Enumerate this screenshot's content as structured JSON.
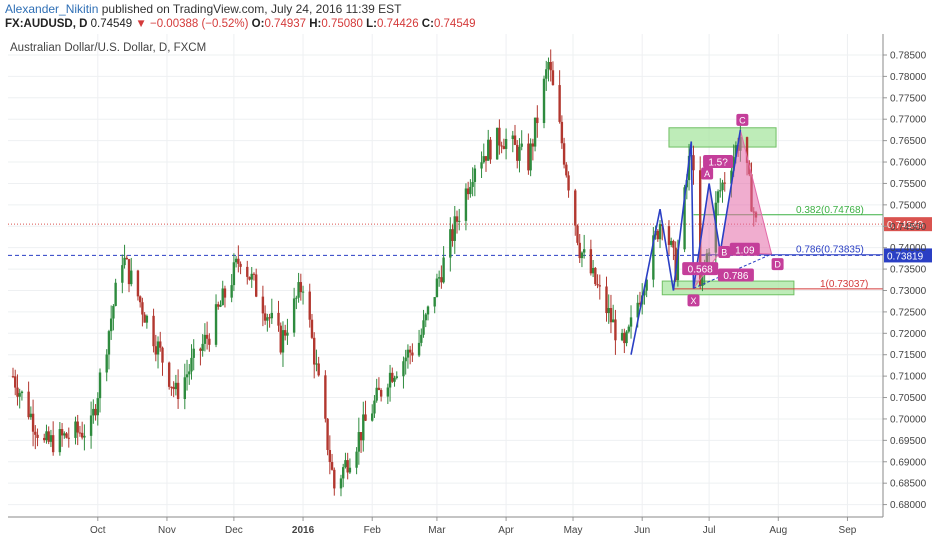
{
  "header": {
    "author": "Alexander_Nikitin",
    "published_text": "published on TradingView.com, July 24, 2016 11:39 EST",
    "symbol": "FX:AUDUSD, D",
    "last": "0.74549",
    "change_arrow": "▼",
    "change": "−0.00388 (−0.52%)",
    "open_label": "O:",
    "open": "0.74937",
    "high_label": "H:",
    "high": "0.75080",
    "low_label": "L:",
    "low": "0.74426",
    "close_label": "C:",
    "close": "0.74549"
  },
  "chart_title": "Australian Dollar/U.S. Dollar, D, FXCM",
  "colors": {
    "up": "#2e8b3e",
    "down": "#b2372f",
    "pattern_line": "#2a3fc4",
    "pattern_fill": "#e36aa8",
    "zone_fill": "#a8e6a0",
    "grid": "#eef0f2",
    "last_price": "#d9534f",
    "dashed_blue": "#2a3fc4"
  },
  "chart_data": {
    "type": "candlestick",
    "title": "Australian Dollar/U.S. Dollar, D, FXCM",
    "x_ticks": [
      "Oct",
      "Nov",
      "Dec",
      "2016",
      "Feb",
      "Mar",
      "Apr",
      "May",
      "Jun",
      "Jul",
      "Aug",
      "Sep"
    ],
    "y_ticks": [
      "0.78500",
      "0.78000",
      "0.77500",
      "0.77000",
      "0.76500",
      "0.76000",
      "0.75500",
      "0.75000",
      "0.74500",
      "0.74000",
      "0.73500",
      "0.73000",
      "0.72500",
      "0.72000",
      "0.71500",
      "0.71000",
      "0.70500",
      "0.70000",
      "0.69500",
      "0.69000",
      "0.68500",
      "0.68000"
    ],
    "ylim": [
      0.6778,
      0.7885
    ],
    "price_labels": [
      {
        "text": "0.74549",
        "value": 0.74549,
        "style": "last"
      },
      {
        "text": "0.73819",
        "value": 0.73819,
        "style": "marker"
      }
    ],
    "fib_levels": [
      {
        "text": "0.382(0.74768)",
        "value": 0.74768,
        "color": "#3cb043"
      },
      {
        "text": "0.786(0.73835)",
        "value": 0.73835,
        "color": "#2a3fc4"
      },
      {
        "text": "1(0.73037)",
        "value": 0.73037,
        "color": "#d43a3a"
      }
    ],
    "pattern_points": [
      {
        "label": "X",
        "date": "2016-06-24",
        "value": 0.7305
      },
      {
        "label": "A",
        "date": "2016-07-01",
        "value": 0.755
      },
      {
        "label": "B",
        "date": "2016-07-06",
        "value": 0.739
      },
      {
        "label": "C",
        "date": "2016-07-15",
        "value": 0.7675
      },
      {
        "label": "D",
        "date": "2016-07-29",
        "value": 0.7385
      }
    ],
    "pattern_ratios": [
      "1.5?",
      "0.568",
      "0.786",
      "1.09"
    ],
    "key_points": [
      {
        "date": "2015-08-24",
        "value": 0.71
      },
      {
        "date": "2015-09-07",
        "value": 0.694
      },
      {
        "date": "2015-09-28",
        "value": 0.698
      },
      {
        "date": "2015-10-12",
        "value": 0.738
      },
      {
        "date": "2015-11-05",
        "value": 0.706
      },
      {
        "date": "2015-11-20",
        "value": 0.72
      },
      {
        "date": "2015-12-04",
        "value": 0.738
      },
      {
        "date": "2015-12-22",
        "value": 0.718
      },
      {
        "date": "2016-01-01",
        "value": 0.732
      },
      {
        "date": "2016-01-15",
        "value": 0.684
      },
      {
        "date": "2016-02-08",
        "value": 0.71
      },
      {
        "date": "2016-02-22",
        "value": 0.718
      },
      {
        "date": "2016-03-18",
        "value": 0.76
      },
      {
        "date": "2016-03-30",
        "value": 0.766
      },
      {
        "date": "2016-04-11",
        "value": 0.76
      },
      {
        "date": "2016-04-20",
        "value": 0.783
      },
      {
        "date": "2016-05-04",
        "value": 0.74
      },
      {
        "date": "2016-05-24",
        "value": 0.716
      },
      {
        "date": "2016-06-10",
        "value": 0.748
      },
      {
        "date": "2016-06-16",
        "value": 0.735
      },
      {
        "date": "2016-06-23",
        "value": 0.764
      },
      {
        "date": "2016-06-27",
        "value": 0.73
      },
      {
        "date": "2016-07-05",
        "value": 0.752
      },
      {
        "date": "2016-07-15",
        "value": 0.766
      },
      {
        "date": "2016-07-22",
        "value": 0.7455
      }
    ]
  }
}
